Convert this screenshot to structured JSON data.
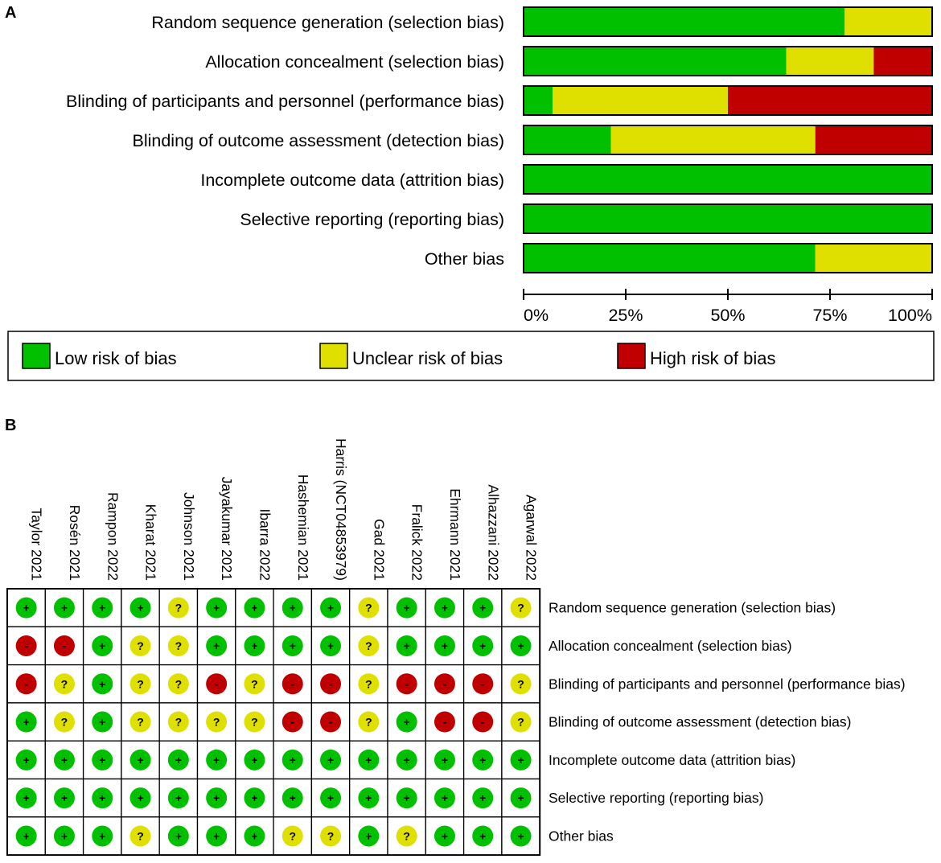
{
  "chart_data": [
    {
      "type": "bar",
      "subtype": "stacked-horizontal-percent",
      "panel_label": "A",
      "categories": [
        "Random sequence generation (selection bias)",
        "Allocation concealment (selection bias)",
        "Blinding of participants and personnel (performance bias)",
        "Blinding of outcome assessment (detection bias)",
        "Incomplete outcome data (attrition bias)",
        "Selective reporting (reporting bias)",
        "Other bias"
      ],
      "series": [
        {
          "name": "Low risk of bias",
          "color": "#00c000",
          "values": [
            78.6,
            64.3,
            7.1,
            21.4,
            100,
            100,
            71.4
          ]
        },
        {
          "name": "Unclear risk of bias",
          "color": "#e0e000",
          "values": [
            21.4,
            21.4,
            42.9,
            50.0,
            0,
            0,
            28.6
          ]
        },
        {
          "name": "High risk of bias",
          "color": "#c00000",
          "values": [
            0,
            14.3,
            50.0,
            28.6,
            0,
            0,
            0
          ]
        }
      ],
      "xlim": [
        0,
        100
      ],
      "xticks": [
        "0%",
        "25%",
        "50%",
        "75%",
        "100%"
      ],
      "legend": [
        "Low risk of bias",
        "Unclear risk of bias",
        "High risk of bias"
      ],
      "legend_position": "bottom"
    },
    {
      "type": "table",
      "subtype": "risk-of-bias-summary",
      "panel_label": "B",
      "studies": [
        "Taylor 2021",
        "Rosén 2021",
        "Rampon 2022",
        "Kharat 2021",
        "Johnson 2021",
        "Jayakumar 2021",
        "Ibarra 2022",
        "Hashemian 2021",
        "Harris (NCT04853979)",
        "Gad 2021",
        "Fralick 2022",
        "Ehrmann 2021",
        "Alhazzani 2022",
        "Agarwal 2022"
      ],
      "domains": [
        "Random sequence generation (selection bias)",
        "Allocation concealment (selection bias)",
        "Blinding of participants and personnel (performance bias)",
        "Blinding of outcome assessment (detection bias)",
        "Incomplete outcome data (attrition bias)",
        "Selective reporting (reporting bias)",
        "Other bias"
      ],
      "judgements": [
        [
          "+",
          "+",
          "+",
          "+",
          "?",
          "+",
          "+",
          "+",
          "+",
          "?",
          "+",
          "+",
          "+",
          "?"
        ],
        [
          "-",
          "-",
          "+",
          "?",
          "?",
          "+",
          "+",
          "+",
          "+",
          "?",
          "+",
          "+",
          "+",
          "+"
        ],
        [
          "-",
          "?",
          "+",
          "?",
          "?",
          "-",
          "?",
          "-",
          "-",
          "?",
          "-",
          "-",
          "-",
          "?"
        ],
        [
          "+",
          "?",
          "+",
          "?",
          "?",
          "?",
          "?",
          "-",
          "-",
          "?",
          "+",
          "-",
          "-",
          "?"
        ],
        [
          "+",
          "+",
          "+",
          "+",
          "+",
          "+",
          "+",
          "+",
          "+",
          "+",
          "+",
          "+",
          "+",
          "+"
        ],
        [
          "+",
          "+",
          "+",
          "+",
          "+",
          "+",
          "+",
          "+",
          "+",
          "+",
          "+",
          "+",
          "+",
          "+"
        ],
        [
          "+",
          "+",
          "+",
          "?",
          "+",
          "+",
          "+",
          "?",
          "?",
          "+",
          "?",
          "+",
          "+",
          "+"
        ]
      ],
      "symbols": {
        "low": "+",
        "unclear": "?",
        "high": "-"
      },
      "colors": {
        "low": "#00c000",
        "unclear": "#e0e000",
        "high": "#c00000"
      }
    }
  ]
}
